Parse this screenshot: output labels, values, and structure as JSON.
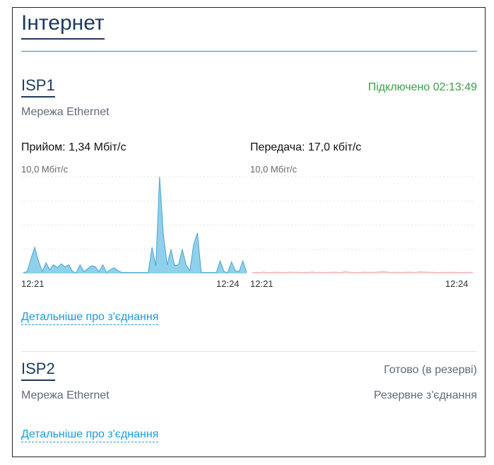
{
  "page": {
    "title": "Інтернет"
  },
  "isp1": {
    "name": "ISP1",
    "status": "Підключено 02:13:49",
    "status_color": "#3aa04a",
    "network_type": "Мережа Ethernet",
    "details_link": "Детальніше про з'єднання",
    "receive": {
      "label": "Прийом: 1,34 Мбіт/с",
      "scale": "10,0 Мбіт/с",
      "time_start": "12:21",
      "time_end": "12:24",
      "fill_color": "#8fd0ea",
      "line_color": "#4aa3d6",
      "max_value": 10,
      "values_mbps": [
        0.1,
        0.2,
        1.5,
        2.7,
        1.3,
        0.2,
        1.1,
        0.4,
        0.9,
        0.6,
        1.0,
        0.7,
        0.9,
        0.2,
        0.1,
        0.9,
        0.2,
        0.5,
        0.8,
        0.7,
        0.2,
        0.9,
        0.1,
        0.4,
        0.6,
        0.3,
        0.1,
        0.1,
        0.1,
        0.1,
        0.1,
        0.1,
        0.1,
        0.1,
        2.7,
        0.8,
        10.0,
        4.0,
        0.9,
        2.5,
        0.8,
        0.9,
        2.5,
        0.9,
        0.3,
        3.0,
        4.2,
        0.1,
        0.1,
        0.1,
        0.1,
        0.1,
        1.3,
        0.2,
        0.1,
        1.2,
        0.3,
        0.2,
        1.3,
        0.1
      ]
    },
    "send": {
      "label": "Передача: 17,0 кбіт/с",
      "scale": "10,0 Мбіт/с",
      "time_start": "12:21",
      "time_end": "12:24",
      "fill_color": "#f7d3d6",
      "line_color": "#f0b3b9",
      "max_value": 10,
      "values_mbps": [
        0.1,
        0.12,
        0.11,
        0.15,
        0.12,
        0.1,
        0.14,
        0.12,
        0.13,
        0.11,
        0.15,
        0.12,
        0.14,
        0.11,
        0.13,
        0.12,
        0.16,
        0.12,
        0.14,
        0.11,
        0.13,
        0.12,
        0.15,
        0.11,
        0.13,
        0.2,
        0.14,
        0.12,
        0.13,
        0.11,
        0.15,
        0.12,
        0.13,
        0.14,
        0.16,
        0.21,
        0.15,
        0.12,
        0.13,
        0.14,
        0.12,
        0.13,
        0.15,
        0.12,
        0.14,
        0.18,
        0.16,
        0.14,
        0.13,
        0.12,
        0.11,
        0.13,
        0.12,
        0.14,
        0.13,
        0.12,
        0.11,
        0.12,
        0.13,
        0.12
      ]
    }
  },
  "isp2": {
    "name": "ISP2",
    "status": "Готово (в резерві)",
    "network_type": "Мережа Ethernet",
    "role": "Резервне з'єднання",
    "details_link": "Детальніше про з'єднання"
  }
}
